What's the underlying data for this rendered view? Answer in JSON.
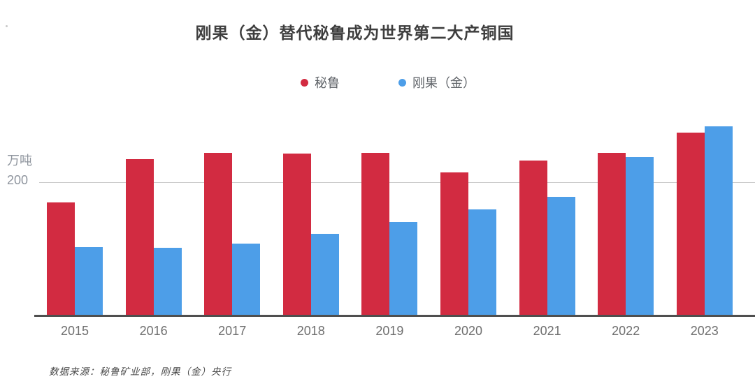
{
  "title": "刚果（金）替代秘鲁成为世界第二大产铜国",
  "legend": {
    "items": [
      {
        "label": "秘鲁",
        "color": "#d22b41"
      },
      {
        "label": "刚果（金）",
        "color": "#4d9ee8"
      }
    ]
  },
  "y_axis": {
    "unit_label": "万吨",
    "tick_label": "200"
  },
  "x_axis": {
    "ticks": [
      "2015",
      "2016",
      "2017",
      "2018",
      "2019",
      "2020",
      "2021",
      "2022",
      "2023"
    ]
  },
  "source_note": "数据来源：秘鲁矿业部，刚果（金）央行",
  "colors": {
    "peru_red": "#d22b41",
    "congo_blue": "#4d9ee8",
    "gridline": "#cbcbcb",
    "axis_line": "#4f4f4f",
    "title_text": "#3e3e3e",
    "tick_text": "#6f6f6f",
    "y_label_text": "#8f959e"
  },
  "chart_data": {
    "type": "bar",
    "title": "刚果（金）替代秘鲁成为世界第二大产铜国",
    "categories": [
      "2015",
      "2016",
      "2017",
      "2018",
      "2019",
      "2020",
      "2021",
      "2022",
      "2023"
    ],
    "series": [
      {
        "name": "秘鲁",
        "color": "#d22b41",
        "values": [
          170,
          235,
          244,
          243,
          244,
          215,
          233,
          244,
          275
        ]
      },
      {
        "name": "刚果（金）",
        "color": "#4d9ee8",
        "values": [
          103,
          102,
          109,
          123,
          141,
          160,
          179,
          238,
          284
        ]
      }
    ],
    "xlabel": "",
    "ylabel": "万吨",
    "unit": "万吨",
    "ylim": [
      0,
      306
    ],
    "gridlines": [
      200
    ],
    "grid": "single-line-at-200",
    "legend_position": "top-center",
    "source": "数据来源：秘鲁矿业部，刚果（金）央行"
  }
}
